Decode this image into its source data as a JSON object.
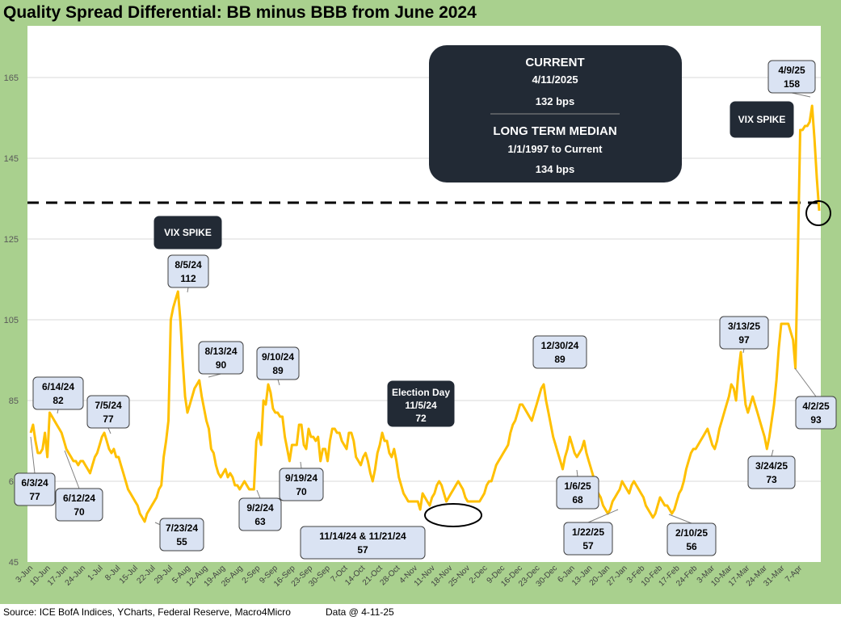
{
  "title": "Quality Spread Differential: BB minus BBB from June 2024",
  "footer": {
    "source": "Source: ICE BofA Indices, YCharts, Federal Reserve, Macro4Micro",
    "data_date": "Data @ 4-11-25"
  },
  "colors": {
    "frame": "#a9d08e",
    "line": "#ffc000",
    "callout_fill": "#dae3f3",
    "dark_box": "#222a35"
  },
  "info_box": {
    "current_label": "CURRENT",
    "current_date": "4/11/2025",
    "current_value": "132 bps",
    "median_label": "LONG TERM MEDIAN",
    "median_range": "1/1/1997 to Current",
    "median_value": "134 bps"
  },
  "chart_data": {
    "type": "line",
    "title": "Quality Spread Differential: BB minus BBB from June 2024",
    "xlabel": "",
    "ylabel": "",
    "ylim": [
      45,
      170
    ],
    "yticks": [
      45,
      65,
      85,
      105,
      125,
      145,
      165
    ],
    "grid": true,
    "x_tick_labels": [
      "3-Jun",
      "10-Jun",
      "17-Jun",
      "24-Jun",
      "1-Jul",
      "8-Jul",
      "15-Jul",
      "22-Jul",
      "29-Jul",
      "5-Aug",
      "12-Aug",
      "19-Aug",
      "26-Aug",
      "2-Sep",
      "9-Sep",
      "16-Sep",
      "23-Sep",
      "30-Sep",
      "7-Oct",
      "14-Oct",
      "21-Oct",
      "28-Oct",
      "4-Nov",
      "11-Nov",
      "18-Nov",
      "25-Nov",
      "2-Dec",
      "9-Dec",
      "16-Dec",
      "23-Dec",
      "30-Dec",
      "6-Jan",
      "13-Jan",
      "20-Jan",
      "27-Jan",
      "3-Feb",
      "10-Feb",
      "17-Feb",
      "24-Feb",
      "3-Mar",
      "10-Mar",
      "17-Mar",
      "24-Mar",
      "31-Mar",
      "7-Apr"
    ],
    "series": [
      {
        "values": [
          77,
          79,
          75,
          72,
          72,
          73,
          77,
          71,
          82,
          81,
          80,
          79,
          78,
          77,
          75,
          73,
          72,
          71,
          70,
          70,
          69,
          70,
          70,
          69,
          68,
          67,
          69,
          71,
          72,
          74,
          76,
          77,
          75,
          73,
          72,
          73,
          71,
          71,
          69,
          67,
          65,
          63,
          62,
          61,
          60,
          59,
          57,
          56,
          55,
          57,
          58,
          59,
          60,
          61,
          63,
          64,
          71,
          75,
          80,
          105,
          108,
          110,
          112,
          105,
          95,
          86,
          82,
          84,
          86,
          88,
          89,
          90,
          86,
          83,
          80,
          78,
          73,
          72,
          69,
          67,
          66,
          67,
          68,
          66,
          67,
          66,
          64,
          64,
          63,
          64,
          65,
          64,
          63,
          63,
          63,
          75,
          77,
          74,
          85,
          84,
          89,
          87,
          83,
          82,
          82,
          81,
          81,
          76,
          73,
          70,
          74,
          74,
          74,
          79,
          79,
          74,
          73,
          78,
          76,
          76,
          75,
          76,
          70,
          73,
          73,
          70,
          75,
          78,
          78,
          77,
          77,
          75,
          74,
          73,
          77,
          77,
          75,
          71,
          70,
          69,
          71,
          72,
          70,
          67,
          65,
          68,
          72,
          74,
          77,
          75,
          75,
          72,
          71,
          73,
          70,
          66,
          64,
          62,
          61,
          60,
          60,
          60,
          60,
          60,
          58,
          62,
          61,
          60,
          59,
          61,
          62,
          64,
          65,
          64,
          62,
          60,
          61,
          62,
          63,
          64,
          65,
          64,
          63,
          61,
          60,
          60,
          60,
          60,
          60,
          60,
          61,
          62,
          64,
          65,
          65,
          67,
          69,
          70,
          71,
          72,
          73,
          74,
          77,
          79,
          80,
          82,
          84,
          84,
          83,
          82,
          81,
          80,
          82,
          84,
          86,
          88,
          89,
          85,
          82,
          79,
          76,
          74,
          72,
          70,
          68,
          71,
          73,
          76,
          74,
          72,
          71,
          72,
          73,
          75,
          72,
          70,
          68,
          66,
          64,
          62,
          61,
          59,
          58,
          57,
          58,
          60,
          61,
          62,
          63,
          65,
          64,
          63,
          62,
          64,
          65,
          64,
          63,
          62,
          61,
          59,
          58,
          57,
          56,
          57,
          59,
          61,
          60,
          59,
          59,
          58,
          57,
          58,
          60,
          62,
          63,
          65,
          68,
          70,
          72,
          73,
          73,
          74,
          75,
          76,
          77,
          78,
          76,
          74,
          73,
          75,
          78,
          80,
          82,
          84,
          86,
          89,
          88,
          85,
          92,
          97,
          90,
          84,
          82,
          84,
          86,
          84,
          82,
          80,
          78,
          76,
          73,
          76,
          80,
          84,
          90,
          98,
          104,
          104,
          104,
          104,
          102,
          100,
          93,
          120,
          152,
          152,
          153,
          153,
          154,
          158,
          150,
          140,
          132
        ]
      }
    ],
    "reference_line": {
      "value": 134,
      "label": "LONG TERM MEDIAN"
    },
    "annotations": [
      {
        "date": "6/3/24",
        "value": 77
      },
      {
        "date": "6/12/24",
        "value": 70
      },
      {
        "date": "6/14/24",
        "value": 82
      },
      {
        "date": "7/5/24",
        "value": 77
      },
      {
        "date": "7/23/24",
        "value": 55
      },
      {
        "date": "8/5/24",
        "value": 112
      },
      {
        "date": "8/13/24",
        "value": 90
      },
      {
        "date": "9/2/24",
        "value": 63
      },
      {
        "date": "9/10/24",
        "value": 89
      },
      {
        "date": "9/19/24",
        "value": 70
      },
      {
        "date": "11/14/24 & 11/21/24",
        "value": 57
      },
      {
        "date": "12/30/24",
        "value": 89
      },
      {
        "date": "1/6/25",
        "value": 68
      },
      {
        "date": "1/22/25",
        "value": 57
      },
      {
        "date": "2/10/25",
        "value": 56
      },
      {
        "date": "3/13/25",
        "value": 97
      },
      {
        "date": "3/24/25",
        "value": 73
      },
      {
        "date": "4/2/25",
        "value": 93
      },
      {
        "date": "4/9/25",
        "value": 158
      }
    ],
    "text_annotations": [
      "VIX SPIKE",
      "VIX SPIKE",
      "Election Day\n11/5/24\n72"
    ]
  }
}
